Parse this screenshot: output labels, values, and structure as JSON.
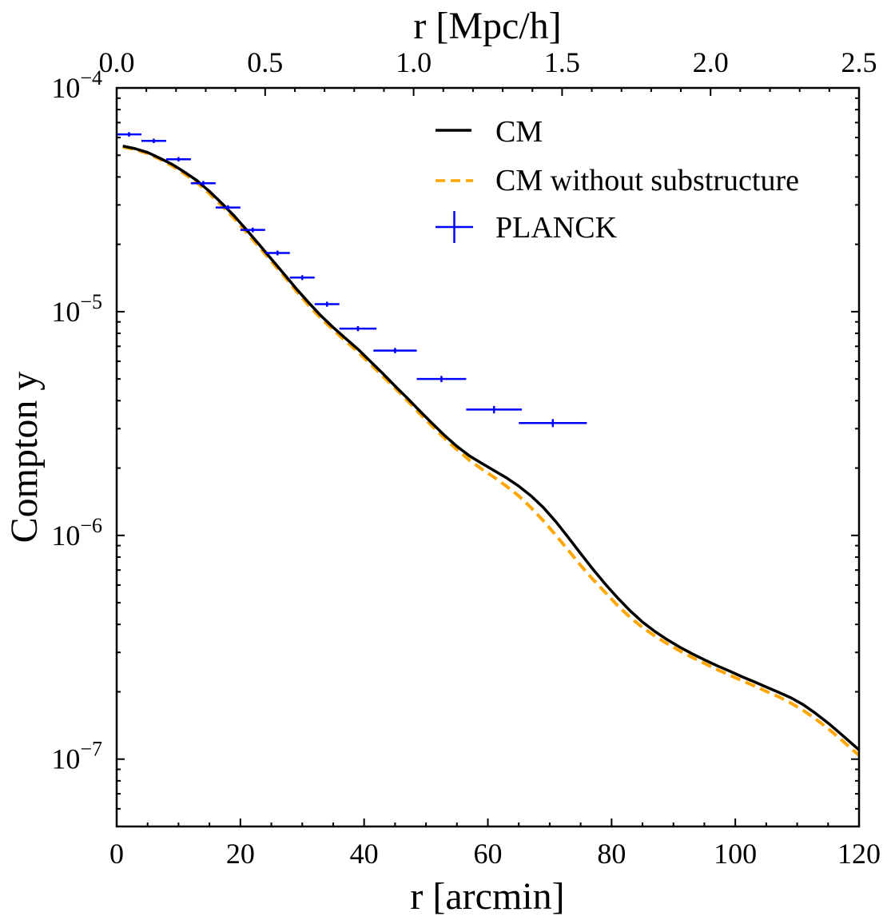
{
  "chart_data": {
    "type": "line",
    "title": "",
    "xlabel": "r [arcmin]",
    "ylabel": "Compton y",
    "top_xlabel": "r [Mpc/h]",
    "xlim": [
      0,
      120
    ],
    "ylim": [
      5e-08,
      0.0001
    ],
    "yscale": "log",
    "top_xlim": [
      0,
      2.5
    ],
    "x_ticks": [
      "0",
      "20",
      "40",
      "60",
      "80",
      "100",
      "120"
    ],
    "top_x_ticks": [
      "0.0",
      "0.5",
      "1.0",
      "1.5",
      "2.0",
      "2.5"
    ],
    "y_tick_base": "10",
    "y_tick_exponents": [
      "−7",
      "−6",
      "−5",
      "−4"
    ],
    "legend_position": "top-right",
    "series": [
      {
        "name": "CM",
        "style": "solid",
        "color": "#000000",
        "x": [
          1,
          3,
          5,
          7,
          9,
          11,
          13,
          15,
          17,
          19,
          21,
          23,
          25,
          27,
          29,
          31,
          33,
          35,
          37,
          39,
          41,
          43,
          45,
          47,
          49,
          51,
          53,
          55,
          57,
          59,
          61,
          63,
          65,
          67,
          69,
          71,
          73,
          75,
          77,
          79,
          81,
          83,
          85,
          87,
          89,
          91,
          93,
          95,
          97,
          99,
          101,
          103,
          105,
          107,
          109,
          111,
          113,
          115,
          117,
          120
        ],
        "y": [
          5.5e-05,
          5.35e-05,
          5.15e-05,
          4.85e-05,
          4.55e-05,
          4.2e-05,
          3.85e-05,
          3.45e-05,
          3.05e-05,
          2.68e-05,
          2.32e-05,
          2e-05,
          1.72e-05,
          1.48e-05,
          1.27e-05,
          1.1e-05,
          9.6e-06,
          8.5e-06,
          7.6e-06,
          6.8e-06,
          6e-06,
          5.3e-06,
          4.65e-06,
          4.1e-06,
          3.6e-06,
          3.17e-06,
          2.8e-06,
          2.5e-06,
          2.27e-06,
          2.1e-06,
          1.95e-06,
          1.81e-06,
          1.66e-06,
          1.5e-06,
          1.33e-06,
          1.15e-06,
          9.8e-07,
          8.3e-07,
          7.05e-07,
          6.05e-07,
          5.25e-07,
          4.6e-07,
          4.1e-07,
          3.72e-07,
          3.42e-07,
          3.17e-07,
          2.96e-07,
          2.78e-07,
          2.62e-07,
          2.48e-07,
          2.34e-07,
          2.22e-07,
          2.1e-07,
          1.99e-07,
          1.88e-07,
          1.75e-07,
          1.6e-07,
          1.45e-07,
          1.3e-07,
          1.1e-07
        ]
      },
      {
        "name": "CM without substructure",
        "style": "dashed",
        "color": "#ffa500",
        "x": [
          1,
          3,
          5,
          7,
          9,
          11,
          13,
          15,
          17,
          19,
          21,
          23,
          25,
          27,
          29,
          31,
          33,
          35,
          37,
          39,
          41,
          43,
          45,
          47,
          49,
          51,
          53,
          55,
          57,
          59,
          61,
          63,
          65,
          67,
          69,
          71,
          73,
          75,
          77,
          79,
          81,
          83,
          85,
          87,
          89,
          91,
          93,
          95,
          97,
          99,
          101,
          103,
          105,
          107,
          109,
          111,
          113,
          115,
          117,
          120
        ],
        "y": [
          5.45e-05,
          5.3e-05,
          5.1e-05,
          4.8e-05,
          4.48e-05,
          4.12e-05,
          3.77e-05,
          3.37e-05,
          2.98e-05,
          2.61e-05,
          2.26e-05,
          1.95e-05,
          1.68e-05,
          1.45e-05,
          1.24e-05,
          1.07e-05,
          9.35e-06,
          8.3e-06,
          7.4e-06,
          6.6e-06,
          5.85e-06,
          5.15e-06,
          4.55e-06,
          4e-06,
          3.5e-06,
          3.08e-06,
          2.72e-06,
          2.42e-06,
          2.17e-06,
          1.98e-06,
          1.82e-06,
          1.66e-06,
          1.5e-06,
          1.33e-06,
          1.16e-06,
          1e-06,
          8.6e-07,
          7.35e-07,
          6.35e-07,
          5.55e-07,
          4.85e-07,
          4.3e-07,
          3.88e-07,
          3.55e-07,
          3.28e-07,
          3.05e-07,
          2.85e-07,
          2.68e-07,
          2.52e-07,
          2.38e-07,
          2.25e-07,
          2.13e-07,
          2.01e-07,
          1.9e-07,
          1.78e-07,
          1.65e-07,
          1.51e-07,
          1.37e-07,
          1.23e-07,
          1.04e-07
        ]
      },
      {
        "name": "PLANCK",
        "style": "errorbar",
        "color": "#0000ff",
        "x": [
          2.0,
          6.0,
          10.0,
          14.0,
          18.0,
          22.0,
          26.0,
          30.0,
          34.0,
          39.0,
          45.0,
          52.5,
          61.0,
          70.5
        ],
        "x_err": [
          2.0,
          2.0,
          2.0,
          2.0,
          2.0,
          2.0,
          2.0,
          2.0,
          2.0,
          3.0,
          3.5,
          4.0,
          4.5,
          5.5
        ],
        "y": [
          6.2e-05,
          5.8e-05,
          4.8e-05,
          3.75e-05,
          2.92e-05,
          2.32e-05,
          1.83e-05,
          1.42e-05,
          1.08e-05,
          8.4e-06,
          6.7e-06,
          5e-06,
          3.65e-06,
          3.18e-06
        ],
        "y_err": [
          1.4e-06,
          1.3e-06,
          1.1e-06,
          9e-07,
          7e-07,
          5.5e-07,
          4.5e-07,
          3.5e-07,
          2.8e-07,
          2.2e-07,
          1.8e-07,
          1.6e-07,
          1.4e-07,
          1.3e-07
        ]
      }
    ]
  }
}
